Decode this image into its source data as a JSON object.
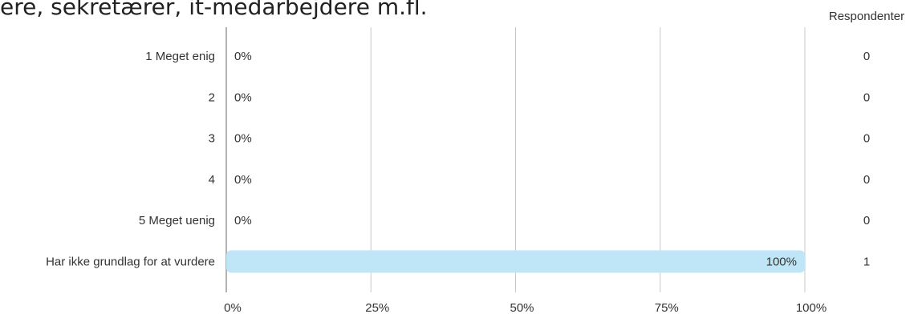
{
  "heading": "ere, sekretærer, it-medarbejdere m.fl.",
  "respondents_header": "Respondenter",
  "colors": {
    "bar": "#bfe6f7",
    "grid": "#c8c8c8",
    "axis": "#999999",
    "text": "#333333"
  },
  "chart_data": {
    "type": "bar",
    "orientation": "horizontal",
    "categories": [
      "1 Meget enig",
      "2",
      "3",
      "4",
      "5 Meget uenig",
      "Har ikke grundlag for at vurdere"
    ],
    "values": [
      0,
      0,
      0,
      0,
      0,
      100
    ],
    "value_labels": [
      "0%",
      "0%",
      "0%",
      "0%",
      "0%",
      "100%"
    ],
    "respondents": [
      "0",
      "0",
      "0",
      "0",
      "0",
      "1"
    ],
    "xlim": [
      0,
      100
    ],
    "x_ticks": [
      0,
      25,
      50,
      75,
      100
    ],
    "x_tick_labels": [
      "0%",
      "25%",
      "50%",
      "75%",
      "100%"
    ],
    "grid": true
  }
}
